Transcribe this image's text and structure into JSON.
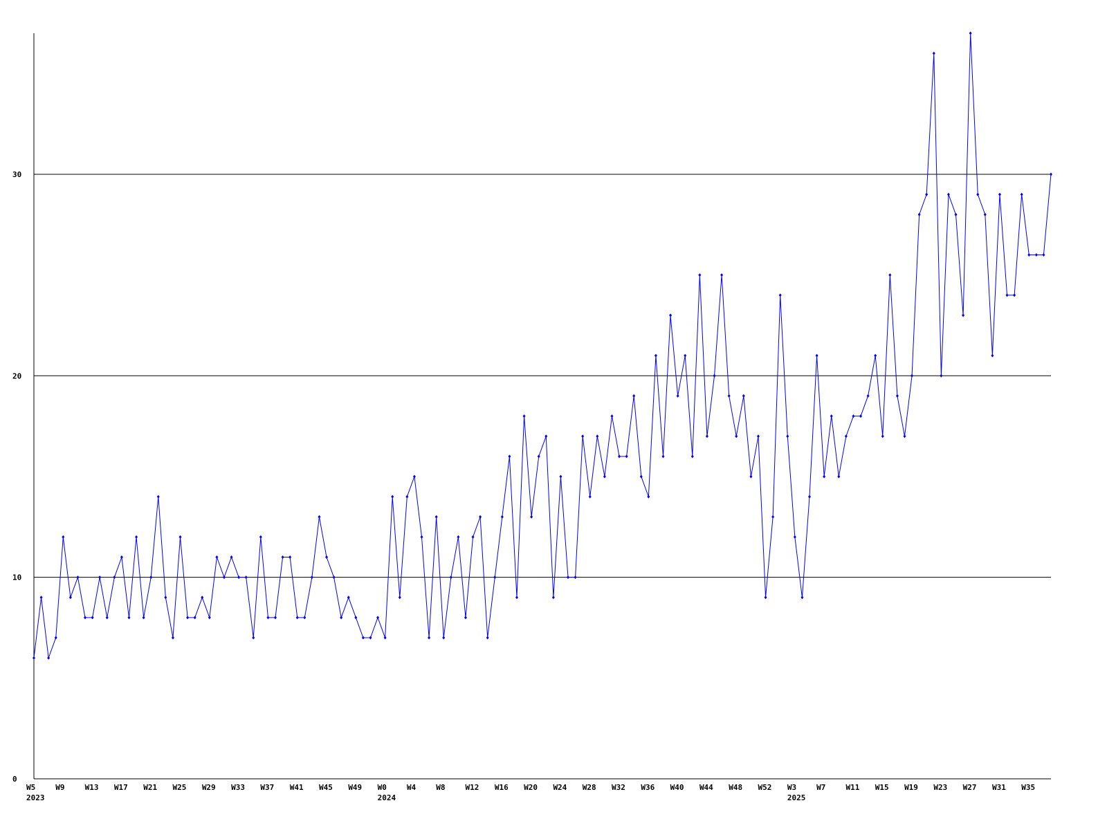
{
  "chart_data": {
    "type": "line",
    "grid": true,
    "categories": [
      "W5",
      null,
      null,
      null,
      "W9",
      null,
      null,
      null,
      "W13",
      null,
      null,
      null,
      "W17",
      null,
      null,
      null,
      "W21",
      null,
      null,
      null,
      "W25",
      null,
      null,
      null,
      "W29",
      null,
      null,
      null,
      "W33",
      null,
      null,
      null,
      "W37",
      null,
      null,
      null,
      "W41",
      null,
      null,
      null,
      "W45",
      null,
      null,
      null,
      "W49",
      null,
      null,
      null,
      "W0",
      null,
      null,
      null,
      "W4",
      null,
      null,
      null,
      "W8",
      null,
      null,
      null,
      "W12",
      null,
      null,
      null,
      "W16",
      null,
      null,
      null,
      "W20",
      null,
      null,
      null,
      "W24",
      null,
      null,
      null,
      "W28",
      null,
      null,
      null,
      "W32",
      null,
      null,
      null,
      "W36",
      null,
      null,
      null,
      "W40",
      null,
      null,
      null,
      "W44",
      null,
      null,
      null,
      "W48",
      null,
      null,
      null,
      "W52",
      null,
      null,
      null,
      "W3",
      null,
      null,
      null,
      "W7",
      null,
      null,
      null,
      "W11",
      null,
      null,
      null,
      "W15",
      null,
      null,
      null,
      "W19",
      null,
      null,
      null,
      "W23",
      null,
      null,
      null,
      "W27",
      null,
      null,
      null,
      "W31",
      null,
      null,
      null,
      "W35",
      null,
      null,
      null
    ],
    "x_sublabels": [
      "2023",
      null,
      null,
      null,
      null,
      null,
      null,
      null,
      null,
      null,
      null,
      null,
      null,
      null,
      null,
      null,
      null,
      null,
      null,
      null,
      null,
      null,
      null,
      null,
      null,
      null,
      null,
      null,
      null,
      null,
      null,
      null,
      null,
      null,
      null,
      null,
      null,
      null,
      null,
      null,
      null,
      null,
      null,
      null,
      null,
      null,
      null,
      null,
      "2024",
      null,
      null,
      null,
      null,
      null,
      null,
      null,
      null,
      null,
      null,
      null,
      null,
      null,
      null,
      null,
      null,
      null,
      null,
      null,
      null,
      null,
      null,
      null,
      null,
      null,
      null,
      null,
      null,
      null,
      null,
      null,
      null,
      null,
      null,
      null,
      null,
      null,
      null,
      null,
      null,
      null,
      null,
      null,
      null,
      null,
      null,
      null,
      null,
      null,
      null,
      null,
      null,
      null,
      null,
      null,
      "2025",
      null,
      null,
      null,
      null,
      null,
      null,
      null,
      null,
      null,
      null,
      null,
      null,
      null,
      null,
      null,
      null,
      null,
      null,
      null,
      null,
      null,
      null,
      null,
      null,
      null,
      null,
      null,
      null,
      null,
      null,
      null,
      null,
      null,
      null,
      null
    ],
    "series": [
      {
        "color": "#0000ff",
        "values": [
          6,
          9,
          6,
          7,
          12,
          9,
          10,
          8,
          8,
          10,
          8,
          10,
          11,
          8,
          12,
          8,
          10,
          14,
          9,
          7,
          12,
          8,
          8,
          9,
          8,
          11,
          10,
          11,
          10,
          10,
          7,
          12,
          8,
          8,
          11,
          11,
          8,
          8,
          10,
          13,
          11,
          10,
          8,
          9,
          8,
          7,
          7,
          8,
          7,
          14,
          9,
          14,
          15,
          12,
          7,
          13,
          7,
          10,
          12,
          8,
          12,
          13,
          7,
          10,
          13,
          16,
          9,
          18,
          13,
          16,
          17,
          9,
          15,
          10,
          10,
          17,
          14,
          17,
          15,
          18,
          16,
          16,
          19,
          15,
          14,
          21,
          16,
          23,
          19,
          21,
          16,
          25,
          17,
          20,
          25,
          19,
          17,
          19,
          15,
          17,
          9,
          13,
          24,
          17,
          12,
          9,
          14,
          21,
          15,
          18,
          15,
          17,
          18,
          18,
          19,
          21,
          17,
          25,
          19,
          17,
          20,
          28,
          29,
          36,
          20,
          29,
          28,
          23,
          37,
          29,
          28,
          21,
          29,
          24,
          24,
          29,
          26,
          26,
          26,
          30
        ]
      }
    ],
    "ylim": [
      0,
      37
    ],
    "yticks": [
      0,
      10,
      20,
      30
    ]
  }
}
